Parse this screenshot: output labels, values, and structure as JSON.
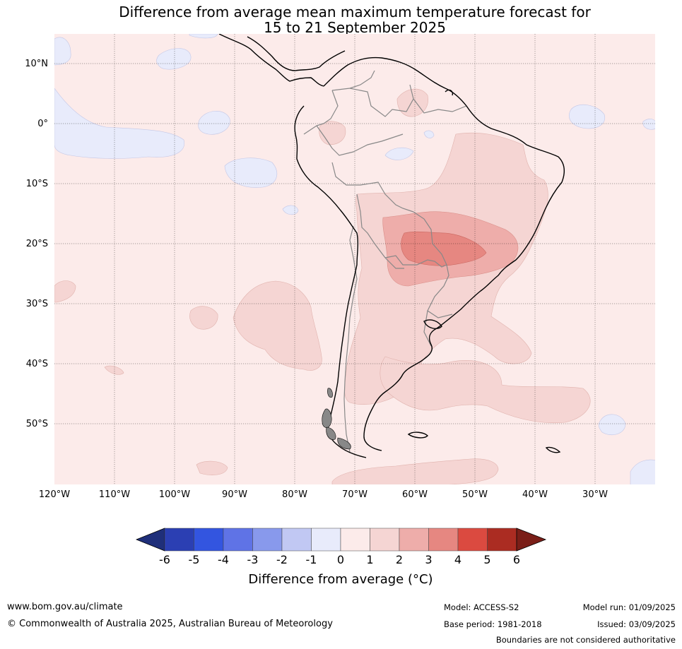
{
  "title": {
    "line1": "Difference from average mean maximum temperature forecast for",
    "line2": "15 to 21 September 2025"
  },
  "map": {
    "lat_labels": [
      {
        "text": "10°N",
        "lat": 10
      },
      {
        "text": "0°",
        "lat": 0
      },
      {
        "text": "10°S",
        "lat": -10
      },
      {
        "text": "20°S",
        "lat": -20
      },
      {
        "text": "30°S",
        "lat": -30
      },
      {
        "text": "40°S",
        "lat": -40
      },
      {
        "text": "50°S",
        "lat": -50
      }
    ],
    "lon_labels": [
      {
        "text": "120°W",
        "lon": -120
      },
      {
        "text": "110°W",
        "lon": -110
      },
      {
        "text": "100°W",
        "lon": -100
      },
      {
        "text": "90°W",
        "lon": -90
      },
      {
        "text": "80°W",
        "lon": -80
      },
      {
        "text": "70°W",
        "lon": -70
      },
      {
        "text": "60°W",
        "lon": -60
      },
      {
        "text": "50°W",
        "lon": -50
      },
      {
        "text": "40°W",
        "lon": -40
      },
      {
        "text": "30°W",
        "lon": -30
      }
    ],
    "extent": {
      "lon_min": -120,
      "lon_max": -20,
      "lat_min": -60,
      "lat_max": 15
    }
  },
  "colorbar": {
    "ticks": [
      "-6",
      "-5",
      "-4",
      "-3",
      "-2",
      "-1",
      "0",
      "1",
      "2",
      "3",
      "4",
      "5",
      "6"
    ],
    "colors": [
      "#2b3fb3",
      "#3355e0",
      "#5f73e6",
      "#8899ec",
      "#c1c8f3",
      "#e8ebfb",
      "#fcebea",
      "#f5d5d3",
      "#eeadaa",
      "#e68781",
      "#db4a40",
      "#ab2c22"
    ],
    "under_color": "#1f2f7a",
    "over_color": "#7a1e18",
    "label": "Difference from average (°C)"
  },
  "footer": {
    "website": "www.bom.gov.au/climate",
    "copyright": "© Commonwealth of Australia 2025, Australian Bureau of Meteorology",
    "model": "Model: ACCESS-S2",
    "base_period": "Base period: 1981-2018",
    "model_run": "Model run: 01/09/2025",
    "issued": "Issued: 03/09/2025",
    "disclaimer": "Boundaries are not considered authoritative"
  }
}
